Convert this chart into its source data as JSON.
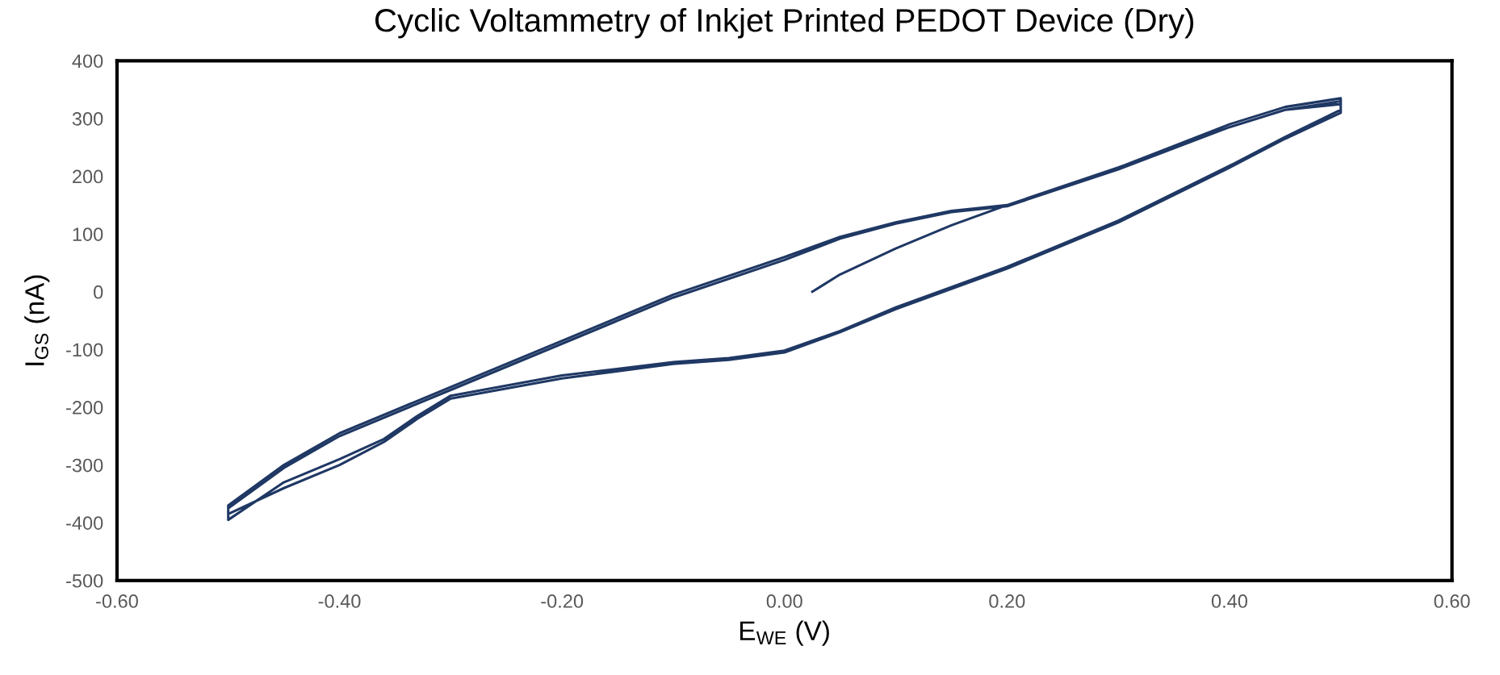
{
  "chart_data": {
    "type": "line",
    "title": "Cyclic Voltammetry of Inkjet Printed PEDOT Device (Dry)",
    "xlabel": "E$_{WE}$ (V)",
    "ylabel": "I$_{GS}$ (nA)",
    "xlim": [
      -0.6,
      0.6
    ],
    "ylim": [
      -500,
      400
    ],
    "xticks": [
      {
        "value": -0.6,
        "label": "-0.60"
      },
      {
        "value": -0.4,
        "label": "-0.40"
      },
      {
        "value": -0.2,
        "label": "-0.20"
      },
      {
        "value": 0,
        "label": "0.00"
      },
      {
        "value": 0.2,
        "label": "0.20"
      },
      {
        "value": 0.4,
        "label": "0.40"
      },
      {
        "value": 0.6,
        "label": "0.60"
      }
    ],
    "yticks": [
      -500,
      -400,
      -300,
      -200,
      -100,
      0,
      100,
      200,
      300,
      400
    ],
    "grid": false,
    "marker": "none",
    "line_style": "solid",
    "series": [
      {
        "color": "#1f3864",
        "x": [
          0.025,
          0.05,
          0.1,
          0.15,
          0.2,
          0.3,
          0.4,
          0.45,
          0.5,
          0.5,
          0.45,
          0.4,
          0.3,
          0.2,
          0.1,
          0.05,
          0.0,
          -0.05,
          -0.1,
          -0.2,
          -0.3,
          -0.33,
          -0.36,
          -0.4,
          -0.45,
          -0.5,
          -0.5,
          -0.45,
          -0.4,
          -0.3,
          -0.2,
          -0.1,
          0.0,
          0.05,
          0.1,
          0.15,
          0.2,
          0.3,
          0.4,
          0.45,
          0.5,
          0.5,
          0.45,
          0.4,
          0.3,
          0.2,
          0.1,
          0.05,
          0.0,
          -0.05,
          -0.1,
          -0.2,
          -0.3,
          -0.33,
          -0.36,
          -0.4,
          -0.45,
          -0.5,
          -0.5,
          -0.45,
          -0.4,
          -0.3,
          -0.2,
          -0.1,
          0.0,
          0.05,
          0.1,
          0.15,
          0.2,
          0.3,
          0.4,
          0.45,
          0.5
        ],
        "values": [
          0,
          30,
          75,
          115,
          150,
          215,
          285,
          315,
          330,
          310,
          265,
          215,
          120,
          40,
          -30,
          -70,
          -105,
          -118,
          -125,
          -150,
          -185,
          -220,
          -260,
          -300,
          -340,
          -385,
          -370,
          -300,
          -245,
          -165,
          -85,
          -5,
          60,
          95,
          120,
          140,
          150,
          215,
          290,
          320,
          335,
          315,
          268,
          218,
          123,
          43,
          -27,
          -68,
          -102,
          -115,
          -122,
          -145,
          -180,
          -215,
          -255,
          -290,
          -330,
          -395,
          -375,
          -305,
          -250,
          -170,
          -90,
          -10,
          55,
          92,
          118,
          138,
          148,
          212,
          285,
          315,
          325
        ]
      }
    ]
  }
}
